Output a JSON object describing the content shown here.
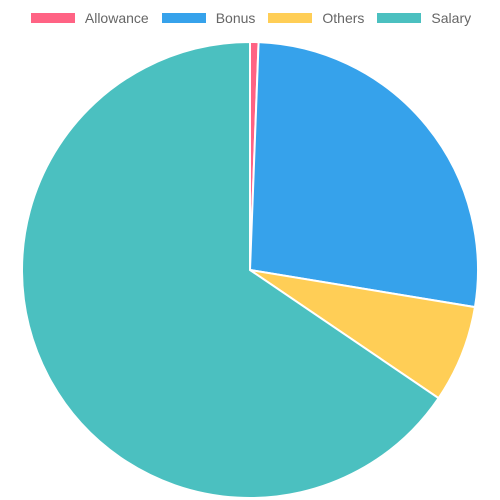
{
  "chart_data": {
    "type": "pie",
    "legend_position": "top",
    "categories": [
      "Allowance",
      "Bonus",
      "Others",
      "Salary"
    ],
    "values": [
      0.6,
      27.0,
      6.9,
      65.5
    ],
    "colors": [
      "#ff6384",
      "#36a2eb",
      "#ffce56",
      "#4bc0c0"
    ]
  }
}
